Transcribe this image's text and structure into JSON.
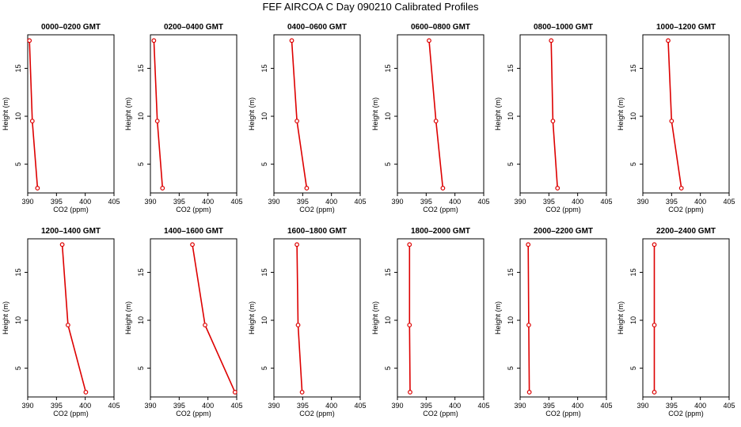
{
  "title": "FEF AIRCOA C  Day 090210  Calibrated Profiles",
  "colors": {
    "line": "#dd0000",
    "axis": "#000000"
  },
  "chart_data": [
    {
      "type": "line",
      "title": "0000–0200 GMT",
      "xlabel": "CO2 (ppm)",
      "ylabel": "Height (m)",
      "xlim": [
        390,
        405
      ],
      "ylim": [
        2,
        18.5
      ],
      "xticks": [
        "390",
        "395",
        "400",
        "405"
      ],
      "yticks": [
        "5",
        "10",
        "15"
      ],
      "series": [
        {
          "x": [
            391.7,
            390.8,
            390.3
          ],
          "y": [
            2.5,
            9.5,
            17.9
          ]
        }
      ]
    },
    {
      "type": "line",
      "title": "0200–0400 GMT",
      "xlabel": "CO2 (ppm)",
      "ylabel": "Height (m)",
      "xlim": [
        390,
        405
      ],
      "ylim": [
        2,
        18.5
      ],
      "xticks": [
        "390",
        "395",
        "400",
        "405"
      ],
      "yticks": [
        "5",
        "10",
        "15"
      ],
      "series": [
        {
          "x": [
            392.1,
            391.2,
            390.6
          ],
          "y": [
            2.5,
            9.5,
            17.9
          ]
        }
      ]
    },
    {
      "type": "line",
      "title": "0400–0600 GMT",
      "xlabel": "CO2 (ppm)",
      "ylabel": "Height (m)",
      "xlim": [
        390,
        405
      ],
      "ylim": [
        2,
        18.5
      ],
      "xticks": [
        "390",
        "395",
        "400",
        "405"
      ],
      "yticks": [
        "5",
        "10",
        "15"
      ],
      "series": [
        {
          "x": [
            395.7,
            394.0,
            393.1
          ],
          "y": [
            2.5,
            9.5,
            17.9
          ]
        }
      ]
    },
    {
      "type": "line",
      "title": "0600–0800 GMT",
      "xlabel": "CO2 (ppm)",
      "ylabel": "Height (m)",
      "xlim": [
        390,
        405
      ],
      "ylim": [
        2,
        18.5
      ],
      "xticks": [
        "390",
        "395",
        "400",
        "405"
      ],
      "yticks": [
        "5",
        "10",
        "15"
      ],
      "series": [
        {
          "x": [
            397.9,
            396.7,
            395.5
          ],
          "y": [
            2.5,
            9.5,
            17.9
          ]
        }
      ]
    },
    {
      "type": "line",
      "title": "0800–1000 GMT",
      "xlabel": "CO2 (ppm)",
      "ylabel": "Height (m)",
      "xlim": [
        390,
        405
      ],
      "ylim": [
        2,
        18.5
      ],
      "xticks": [
        "390",
        "395",
        "400",
        "405"
      ],
      "yticks": [
        "5",
        "10",
        "15"
      ],
      "series": [
        {
          "x": [
            396.5,
            395.7,
            395.4
          ],
          "y": [
            2.5,
            9.5,
            17.9
          ]
        }
      ]
    },
    {
      "type": "line",
      "title": "1000–1200 GMT",
      "xlabel": "CO2 (ppm)",
      "ylabel": "Height (m)",
      "xlim": [
        390,
        405
      ],
      "ylim": [
        2,
        18.5
      ],
      "xticks": [
        "390",
        "395",
        "400",
        "405"
      ],
      "yticks": [
        "5",
        "10",
        "15"
      ],
      "series": [
        {
          "x": [
            396.7,
            395.0,
            394.4
          ],
          "y": [
            2.5,
            9.5,
            17.9
          ]
        }
      ]
    },
    {
      "type": "line",
      "title": "1200–1400 GMT",
      "xlabel": "CO2 (ppm)",
      "ylabel": "Height (m)",
      "xlim": [
        390,
        405
      ],
      "ylim": [
        2,
        18.5
      ],
      "xticks": [
        "390",
        "395",
        "400",
        "405"
      ],
      "yticks": [
        "5",
        "10",
        "15"
      ],
      "series": [
        {
          "x": [
            400.1,
            397.0,
            396.0
          ],
          "y": [
            2.5,
            9.5,
            17.9
          ]
        }
      ]
    },
    {
      "type": "line",
      "title": "1400–1600 GMT",
      "xlabel": "CO2 (ppm)",
      "ylabel": "Height (m)",
      "xlim": [
        390,
        405
      ],
      "ylim": [
        2,
        18.5
      ],
      "xticks": [
        "390",
        "395",
        "400",
        "405"
      ],
      "yticks": [
        "5",
        "10",
        "15"
      ],
      "series": [
        {
          "x": [
            404.7,
            399.5,
            397.3
          ],
          "y": [
            2.5,
            9.5,
            17.9
          ]
        }
      ]
    },
    {
      "type": "line",
      "title": "1600–1800 GMT",
      "xlabel": "CO2 (ppm)",
      "ylabel": "Height (m)",
      "xlim": [
        390,
        405
      ],
      "ylim": [
        2,
        18.5
      ],
      "xticks": [
        "390",
        "395",
        "400",
        "405"
      ],
      "yticks": [
        "5",
        "10",
        "15"
      ],
      "series": [
        {
          "x": [
            394.9,
            394.2,
            394.0
          ],
          "y": [
            2.5,
            9.5,
            17.9
          ]
        }
      ]
    },
    {
      "type": "line",
      "title": "1800–2000 GMT",
      "xlabel": "CO2 (ppm)",
      "ylabel": "Height (m)",
      "xlim": [
        390,
        405
      ],
      "ylim": [
        2,
        18.5
      ],
      "xticks": [
        "390",
        "395",
        "400",
        "405"
      ],
      "yticks": [
        "5",
        "10",
        "15"
      ],
      "series": [
        {
          "x": [
            392.2,
            392.1,
            392.1
          ],
          "y": [
            2.5,
            9.5,
            17.9
          ]
        }
      ]
    },
    {
      "type": "line",
      "title": "2000–2200 GMT",
      "xlabel": "CO2 (ppm)",
      "ylabel": "Height (m)",
      "xlim": [
        390,
        405
      ],
      "ylim": [
        2,
        18.5
      ],
      "xticks": [
        "390",
        "395",
        "400",
        "405"
      ],
      "yticks": [
        "5",
        "10",
        "15"
      ],
      "series": [
        {
          "x": [
            391.6,
            391.5,
            391.4
          ],
          "y": [
            2.5,
            9.5,
            17.9
          ]
        }
      ]
    },
    {
      "type": "line",
      "title": "2200–2400 GMT",
      "xlabel": "CO2 (ppm)",
      "ylabel": "Height (m)",
      "xlim": [
        390,
        405
      ],
      "ylim": [
        2,
        18.5
      ],
      "xticks": [
        "390",
        "395",
        "400",
        "405"
      ],
      "yticks": [
        "5",
        "10",
        "15"
      ],
      "series": [
        {
          "x": [
            392.0,
            392.0,
            392.0
          ],
          "y": [
            2.5,
            9.5,
            17.9
          ]
        }
      ]
    }
  ]
}
